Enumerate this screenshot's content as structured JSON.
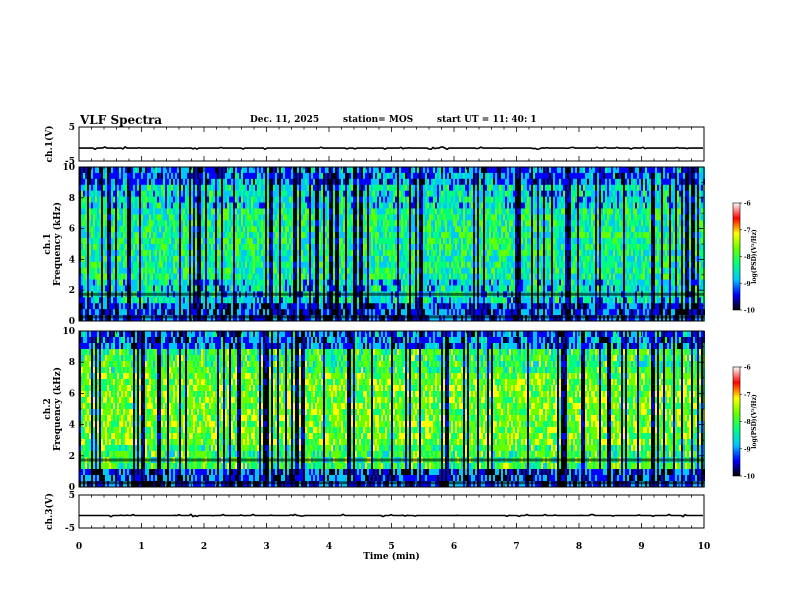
{
  "header": {
    "title": "VLF Spectra",
    "date": "Dec. 11, 2025",
    "station": "station= MOS",
    "start_ut": "start  UT  =   11: 40: 1"
  },
  "chart_data": [
    {
      "id": "ch1-voltage",
      "type": "line",
      "ylabel": "ch.1(V)",
      "ylim": [
        -5,
        5
      ],
      "yticks": [
        "5",
        "-5"
      ],
      "xlim": [
        0,
        10
      ],
      "baseline_value": -1.2,
      "x_unit": "min"
    },
    {
      "id": "ch1-spectrogram",
      "type": "heatmap",
      "ylabel_line1": "ch.1",
      "ylabel_line2": "Frequency (kHz)",
      "ylim": [
        0,
        10
      ],
      "yticks": [
        "0",
        "2",
        "4",
        "6",
        "8",
        "10"
      ],
      "xlim": [
        0,
        10
      ],
      "colorbar": {
        "label": "log(PSD)(V²/Hz)",
        "range": [
          -10,
          -6
        ],
        "ticks": [
          "-6",
          "-7",
          "-8",
          "-9",
          "-10"
        ],
        "colormap": [
          "#000000",
          "#0000ff",
          "#00c8ff",
          "#00ff7f",
          "#64ff00",
          "#ffff00",
          "#ff0000",
          "#ffffff"
        ]
      }
    },
    {
      "id": "ch2-spectrogram",
      "type": "heatmap",
      "ylabel_line1": "ch.2",
      "ylabel_line2": "Frequency (kHz)",
      "ylim": [
        0,
        10
      ],
      "yticks": [
        "0",
        "2",
        "4",
        "6",
        "8",
        "10"
      ],
      "xlim": [
        0,
        10
      ],
      "colorbar": {
        "label": "log(PSD)(V²/Hz)",
        "range": [
          -10,
          -6
        ],
        "ticks": [
          "-6",
          "-7",
          "-8",
          "-9",
          "-10"
        ],
        "colormap": [
          "#000000",
          "#0000ff",
          "#00c8ff",
          "#00ff7f",
          "#64ff00",
          "#ffff00",
          "#ff0000",
          "#ffffff"
        ]
      }
    },
    {
      "id": "ch3-voltage",
      "type": "line",
      "ylabel": "ch.3(V)",
      "ylim": [
        -5,
        5
      ],
      "yticks": [
        "5",
        "-5"
      ],
      "xlim": [
        0,
        10
      ],
      "baseline_value": -1.2,
      "xlabel": "Time  (min)",
      "xticks": [
        "0",
        "1",
        "2",
        "3",
        "4",
        "5",
        "6",
        "7",
        "8",
        "9",
        "10"
      ]
    }
  ]
}
